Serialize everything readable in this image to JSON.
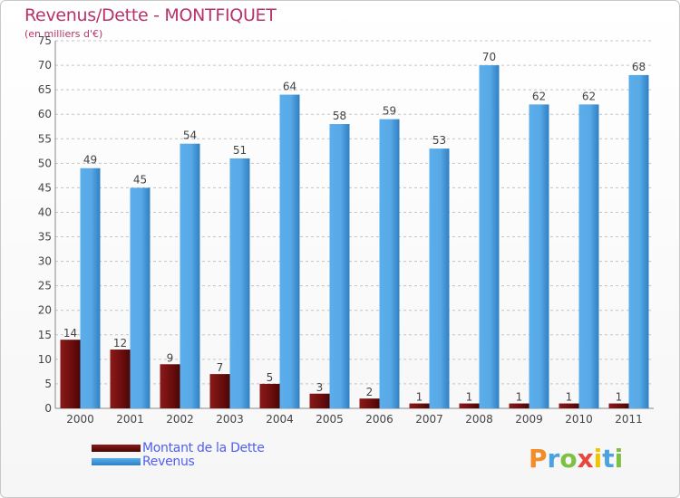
{
  "title": "Revenus/Dette - MONTFIQUET",
  "subtitle": "(en milliers d'€)",
  "colors": {
    "debt": "#6b0d0d",
    "revenue": "#4c9fdf",
    "title": "#b8336a",
    "legend_text": "#4f5ff0"
  },
  "legend": [
    {
      "name": "Montant de la Dette",
      "color": "#6b0d0d"
    },
    {
      "name": "Revenus",
      "color": "#4c9fdf"
    }
  ],
  "logo_text": "Proxiti",
  "chart_data": {
    "type": "bar",
    "title": "Revenus/Dette - MONTFIQUET",
    "subtitle": "(en milliers d'€)",
    "categories": [
      "2000",
      "2001",
      "2002",
      "2003",
      "2004",
      "2005",
      "2006",
      "2007",
      "2008",
      "2009",
      "2010",
      "2011"
    ],
    "series": [
      {
        "name": "Montant de la Dette",
        "values": [
          14,
          12,
          9,
          7,
          5,
          3,
          2,
          1,
          1,
          1,
          1,
          1
        ]
      },
      {
        "name": "Revenus",
        "values": [
          49,
          45,
          54,
          51,
          64,
          58,
          59,
          53,
          70,
          62,
          62,
          68
        ]
      }
    ],
    "ylim": [
      0,
      75
    ],
    "yticks": [
      0,
      5,
      10,
      15,
      20,
      25,
      30,
      35,
      40,
      45,
      50,
      55,
      60,
      65,
      70,
      75
    ],
    "grid": "horizontal dashed",
    "legend_position": "bottom-left"
  }
}
